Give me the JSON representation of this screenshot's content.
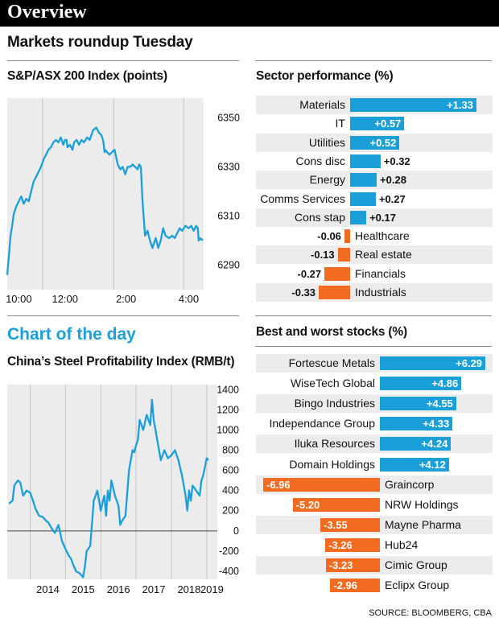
{
  "header": {
    "title": "Overview",
    "subtitle": "Markets roundup Tuesday",
    "chart_of_day": "Chart of the day",
    "source": "SOURCE: BLOOMBERG, CBA"
  },
  "colors": {
    "blue": "#1a9fd9",
    "orange": "#f26b21",
    "shade": "#ececec"
  },
  "chart_data": [
    {
      "type": "line",
      "title": "S&P/ASX 200 Index (points)",
      "x_tick_labels": [
        "10:00",
        "12:00",
        "2:00",
        "4:00"
      ],
      "y_ticks": [
        6290,
        6310,
        6330,
        6350
      ],
      "ylim": [
        6280,
        6358
      ],
      "y_axis_side": "right",
      "grid": "vertical",
      "series": [
        {
          "x": [
            0,
            0.1,
            0.2,
            0.3,
            0.4,
            0.55,
            0.7,
            0.85,
            1.0,
            1.15,
            1.3,
            1.45,
            1.6,
            1.75,
            1.9,
            2.05,
            2.2,
            2.35,
            2.5,
            2.65,
            2.8,
            2.95,
            3.1,
            3.25,
            3.4,
            3.5,
            3.6,
            3.65,
            3.8,
            3.95,
            4.05,
            4.2,
            4.35,
            4.5,
            4.65,
            4.85,
            5.0,
            5.2,
            5.4,
            5.55,
            5.7,
            5.8,
            5.85,
            5.9,
            5.93,
            6.05,
            6.2,
            6.35,
            6.5,
            6.6,
            6.7,
            6.85,
            7.0,
            7.15,
            7.3,
            7.45,
            7.6,
            7.75,
            7.9,
            8.0,
            8.1,
            8.2,
            8.35,
            8.5,
            8.65,
            8.8,
            9.0,
            9.15,
            9.3,
            9.45,
            9.6,
            9.8,
            10.0,
            10.15,
            10.3,
            10.45,
            10.6,
            10.8,
            11.0,
            11.15,
            11.3,
            11.45,
            11.55,
            11.6,
            11.7,
            11.85
          ],
          "values": [
            6286,
            6294,
            6302,
            6306,
            6311,
            6314,
            6316,
            6318,
            6315,
            6317,
            6316,
            6320,
            6324,
            6326,
            6328,
            6330,
            6333,
            6335,
            6337,
            6338,
            6340,
            6341,
            6340,
            6342,
            6339,
            6341,
            6341,
            6338,
            6339,
            6337,
            6340,
            6341,
            6339,
            6341,
            6340,
            6342,
            6341,
            6345,
            6346,
            6344,
            6343,
            6341,
            6339,
            6336,
            6337,
            6336,
            6335,
            6336,
            6337,
            6334,
            6331,
            6329,
            6330,
            6327,
            6330,
            6330,
            6331,
            6330,
            6329,
            6331,
            6330,
            6316,
            6302,
            6304,
            6300,
            6297,
            6301,
            6297,
            6300,
            6305,
            6302,
            6301,
            6302,
            6301,
            6303,
            6305,
            6304,
            6306,
            6305,
            6306,
            6304,
            6306,
            6305,
            6300,
            6301,
            6300
          ]
        }
      ]
    },
    {
      "type": "bar",
      "title": "Sector performance (%)",
      "categories": [
        "Materials",
        "IT",
        "Utilities",
        "Cons disc",
        "Energy",
        "Comms Services",
        "Cons stap",
        "Healthcare",
        "Real estate",
        "Financials",
        "Industrials"
      ],
      "values": [
        1.33,
        0.57,
        0.52,
        0.32,
        0.28,
        0.27,
        0.17,
        -0.06,
        -0.13,
        -0.27,
        -0.33
      ],
      "labels": [
        "+1.33",
        "+0.57",
        "+0.52",
        "+0.32",
        "+0.28",
        "+0.27",
        "+0.17",
        "-0.06",
        "-0.13",
        "-0.27",
        "-0.33"
      ]
    },
    {
      "type": "line",
      "title": "China’s Steel Profitability Index (RMB/t)",
      "x_tick_labels": [
        "2014",
        "2015",
        "2016",
        "2017",
        "2018",
        "2019"
      ],
      "y_ticks": [
        -400,
        -200,
        0,
        200,
        400,
        600,
        800,
        1000,
        1200,
        1400
      ],
      "ylim": [
        -480,
        1450
      ],
      "y_axis_side": "right",
      "grid": "vertical",
      "series": [
        {
          "x": [
            2013.4,
            2013.5,
            2013.55,
            2013.65,
            2013.72,
            2013.8,
            2013.9,
            2014.0,
            2014.08,
            2014.15,
            2014.25,
            2014.35,
            2014.45,
            2014.52,
            2014.6,
            2014.7,
            2014.8,
            2014.9,
            2015.0,
            2015.1,
            2015.15,
            2015.2,
            2015.3,
            2015.4,
            2015.5,
            2015.55,
            2015.6,
            2015.7,
            2015.8,
            2015.9,
            2016.0,
            2016.05,
            2016.1,
            2016.15,
            2016.2,
            2016.25,
            2016.3,
            2016.4,
            2016.5,
            2016.55,
            2016.6,
            2016.7,
            2016.8,
            2016.85,
            2016.9,
            2016.95,
            2017.0,
            2017.05,
            2017.1,
            2017.2,
            2017.3,
            2017.4,
            2017.45,
            2017.5,
            2017.55,
            2017.6,
            2017.7,
            2017.8,
            2017.85,
            2017.9,
            2018.0,
            2018.1,
            2018.2,
            2018.3,
            2018.4,
            2018.45,
            2018.5,
            2018.55,
            2018.6,
            2018.7,
            2018.8,
            2018.85,
            2018.9,
            2019.0,
            2019.05
          ],
          "values": [
            270,
            300,
            450,
            500,
            480,
            350,
            400,
            380,
            300,
            220,
            150,
            140,
            100,
            80,
            30,
            -20,
            60,
            -100,
            -180,
            -250,
            -270,
            -320,
            -400,
            -420,
            -460,
            -350,
            -200,
            -150,
            300,
            400,
            200,
            280,
            350,
            150,
            400,
            300,
            500,
            350,
            250,
            60,
            100,
            150,
            600,
            700,
            800,
            780,
            850,
            900,
            1100,
            1000,
            1150,
            1050,
            1300,
            1100,
            1000,
            900,
            700,
            800,
            760,
            720,
            750,
            800,
            700,
            550,
            350,
            200,
            400,
            300,
            450,
            400,
            350,
            500,
            550,
            720,
            700
          ]
        }
      ]
    },
    {
      "type": "bar",
      "title": "Best and worst stocks (%)",
      "categories": [
        "Fortescue Metals",
        "WiseTech Global",
        "Bingo Industries",
        "Independance Group",
        "Iluka Resources",
        "Domain Holdings",
        "Graincorp",
        "NRW Holdings",
        "Mayne Pharma",
        "Hub24",
        "Cimic Group",
        "Eclipx Group"
      ],
      "values": [
        6.29,
        4.86,
        4.55,
        4.33,
        4.24,
        4.12,
        -6.96,
        -5.2,
        -3.55,
        -3.26,
        -3.23,
        -2.96
      ],
      "labels": [
        "+6.29",
        "+4.86",
        "+4.55",
        "+4.33",
        "+4.24",
        "+4.12",
        "-6.96",
        "-5.20",
        "-3.55",
        "-3.26",
        "-3.23",
        "-2.96"
      ]
    }
  ]
}
